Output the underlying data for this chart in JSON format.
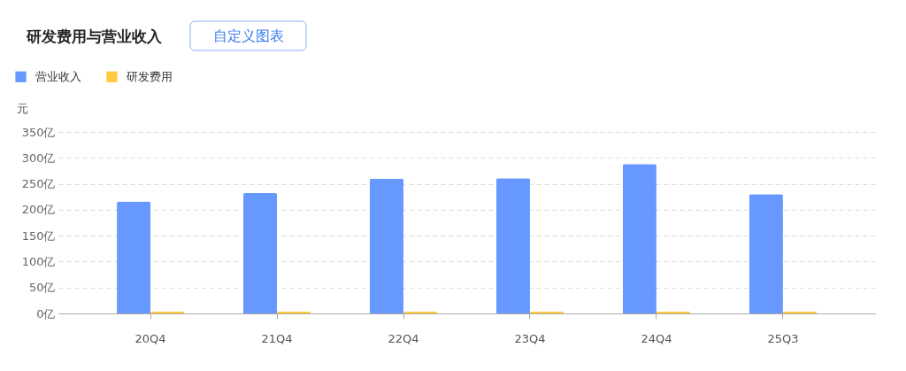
{
  "chart_data": {
    "type": "bar",
    "title": "研发费用与营业收入",
    "annotations": [
      "自定义图表"
    ],
    "ylabel": "元",
    "categories": [
      "20Q4",
      "21Q4",
      "22Q4",
      "23Q4",
      "24Q4",
      "25Q3"
    ],
    "series": [
      {
        "name": "营业收入",
        "color": "#6798ff",
        "values": [
          216,
          232,
          260,
          261,
          288,
          230
        ]
      },
      {
        "name": "研发费用",
        "color": "#ffc940",
        "values": [
          4,
          4,
          4,
          4,
          4,
          4
        ]
      }
    ],
    "ylim": [
      0,
      350
    ],
    "yticks": [
      {
        "value": 0,
        "label": "0亿"
      },
      {
        "value": 50,
        "label": "50亿"
      },
      {
        "value": 100,
        "label": "100亿"
      },
      {
        "value": 150,
        "label": "150亿"
      },
      {
        "value": 200,
        "label": "200亿"
      },
      {
        "value": 250,
        "label": "250亿"
      },
      {
        "value": 300,
        "label": "300亿"
      },
      {
        "value": 350,
        "label": "350亿"
      }
    ],
    "grid": "y",
    "legend": "top left"
  }
}
